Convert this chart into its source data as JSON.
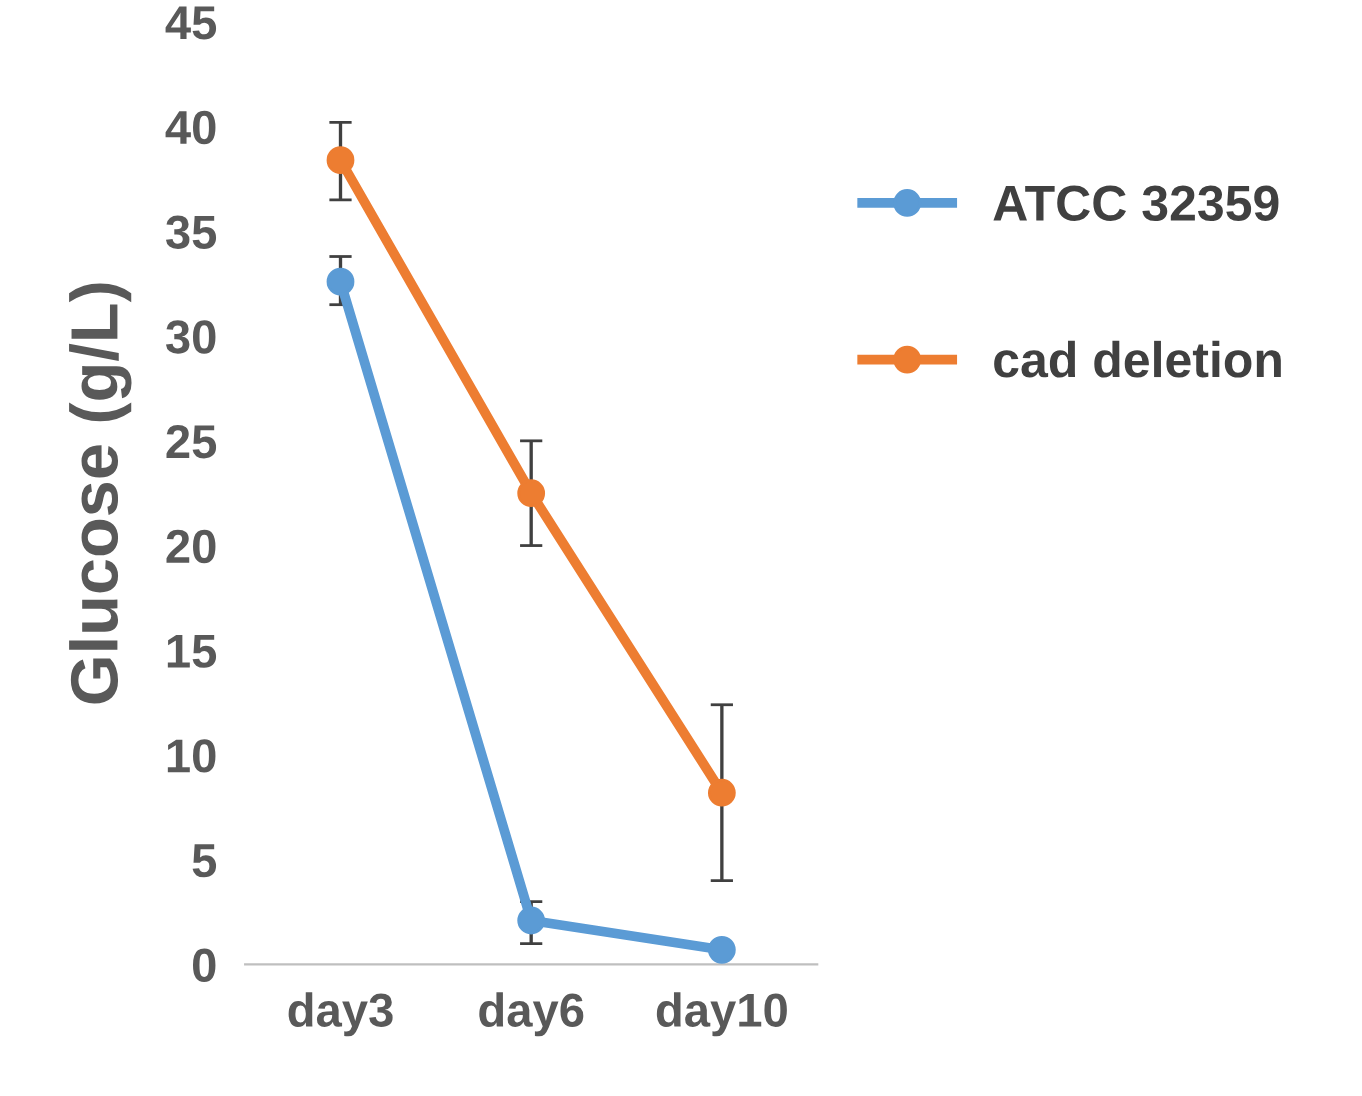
{
  "chart_data": {
    "type": "line",
    "ylabel": "Glucose (g/L)",
    "categories": [
      "day3",
      "day6",
      "day10"
    ],
    "series": [
      {
        "name": "ATCC 32359",
        "color": "#5b9bd5",
        "values": [
          32.6,
          2.1,
          0.7
        ],
        "errors": [
          [
            31.5,
            33.8
          ],
          [
            1.0,
            3.0
          ],
          null
        ]
      },
      {
        "name": "cad deletion",
        "color": "#ed7d31",
        "values": [
          38.4,
          22.5,
          8.2
        ],
        "errors": [
          [
            36.5,
            40.2
          ],
          [
            20.0,
            25.0
          ],
          [
            4.0,
            12.4
          ]
        ]
      }
    ],
    "ylim": [
      0,
      45
    ],
    "yticks": [
      0,
      5,
      10,
      15,
      20,
      25,
      30,
      35,
      40,
      45
    ],
    "grid": false,
    "legend": "right",
    "marker": "circle",
    "line_style": "solid"
  }
}
